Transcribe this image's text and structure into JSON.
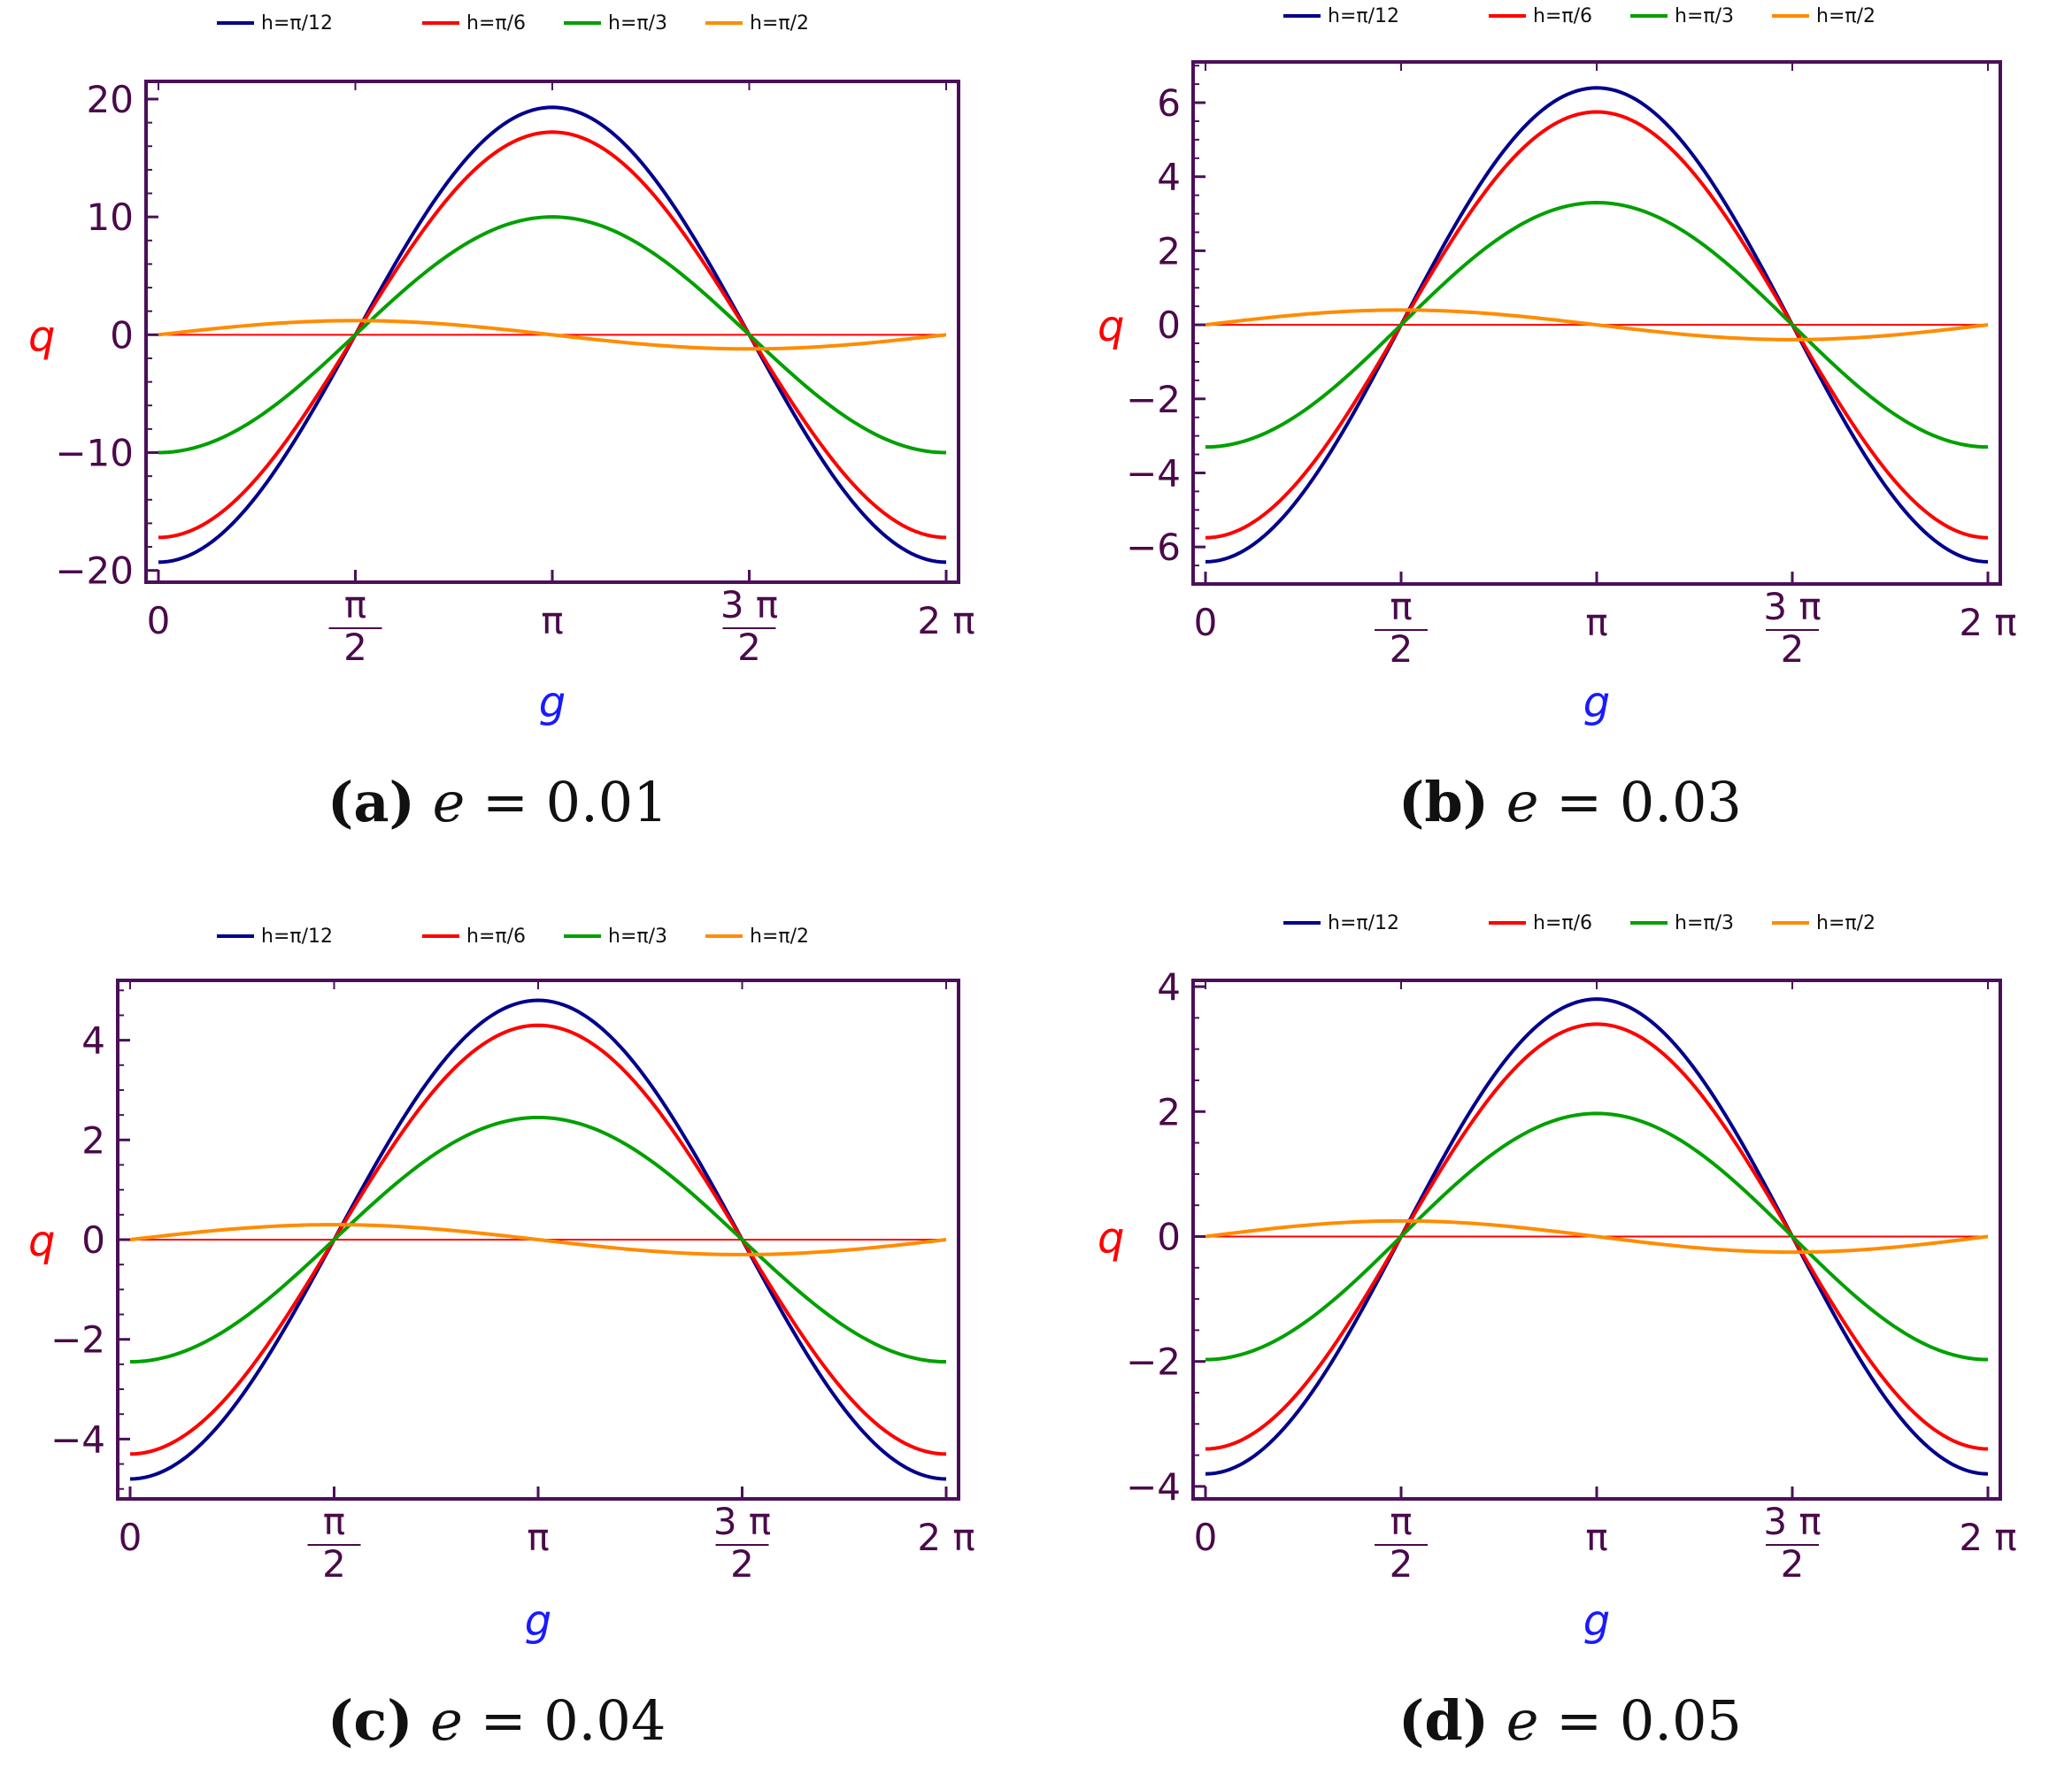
{
  "colors": {
    "frame": "#4b0f5a",
    "tick_text": "#4a0a4a",
    "ylabel": "#ff0000",
    "xlabel": "#1a1aff",
    "zero_line": "#ff0000",
    "series": [
      "#00008b",
      "#ff0000",
      "#00a000",
      "#ff8c00"
    ]
  },
  "chart_data": [
    {
      "type": "line",
      "caption": {
        "tag": "(a)",
        "var": "e",
        "eq": "= 0.01"
      },
      "xlabel": "g",
      "ylabel": "q",
      "xlim": [
        0,
        6.2832
      ],
      "ylim": [
        -21,
        21.5
      ],
      "yticks": [
        -20,
        -10,
        0,
        10,
        20
      ],
      "ytick_labels": [
        "−20",
        "−10",
        "0",
        "10",
        "20"
      ],
      "ytick_minor_step": 2,
      "xticks": [
        0,
        1.5708,
        3.1416,
        4.7124,
        6.2832
      ],
      "xtick_labels": [
        [
          "0"
        ],
        [
          "π",
          "2"
        ],
        [
          "π"
        ],
        [
          "3 π",
          "2"
        ],
        [
          "2 π"
        ]
      ],
      "legend_position": "top",
      "series": [
        {
          "name": "h=π/12",
          "amplitude": 19.3
        },
        {
          "name": "h=π/6",
          "amplitude": 17.2
        },
        {
          "name": "h=π/3",
          "amplitude": 10.0
        },
        {
          "name": "h=π/2",
          "amplitude": 1.2
        }
      ]
    },
    {
      "type": "line",
      "caption": {
        "tag": "(b)",
        "var": "e",
        "eq": "= 0.03"
      },
      "xlabel": "g",
      "ylabel": "q",
      "xlim": [
        0,
        6.2832
      ],
      "ylim": [
        -7,
        7.1
      ],
      "yticks": [
        -6,
        -4,
        -2,
        0,
        2,
        4,
        6
      ],
      "ytick_labels": [
        "−6",
        "−4",
        "−2",
        "0",
        "2",
        "4",
        "6"
      ],
      "ytick_minor_step": 0.5,
      "xticks": [
        0,
        1.5708,
        3.1416,
        4.7124,
        6.2832
      ],
      "xtick_labels": [
        [
          "0"
        ],
        [
          "π",
          "2"
        ],
        [
          "π"
        ],
        [
          "3 π",
          "2"
        ],
        [
          "2 π"
        ]
      ],
      "legend_position": "top",
      "series": [
        {
          "name": "h=π/12",
          "amplitude": 6.4
        },
        {
          "name": "h=π/6",
          "amplitude": 5.75
        },
        {
          "name": "h=π/3",
          "amplitude": 3.3
        },
        {
          "name": "h=π/2",
          "amplitude": 0.4
        }
      ]
    },
    {
      "type": "line",
      "caption": {
        "tag": "(c)",
        "var": "e",
        "eq": "= 0.04"
      },
      "xlabel": "g",
      "ylabel": "q",
      "xlim": [
        0,
        6.2832
      ],
      "ylim": [
        -5.2,
        5.2
      ],
      "yticks": [
        -4,
        -2,
        0,
        2,
        4
      ],
      "ytick_labels": [
        "−4",
        "−2",
        "0",
        "2",
        "4"
      ],
      "ytick_minor_step": 0.5,
      "xticks": [
        0,
        1.5708,
        3.1416,
        4.7124,
        6.2832
      ],
      "xtick_labels": [
        [
          "0"
        ],
        [
          "π",
          "2"
        ],
        [
          "π"
        ],
        [
          "3 π",
          "2"
        ],
        [
          "2 π"
        ]
      ],
      "legend_position": "top",
      "series": [
        {
          "name": "h=π/12",
          "amplitude": 4.8
        },
        {
          "name": "h=π/6",
          "amplitude": 4.3
        },
        {
          "name": "h=π/3",
          "amplitude": 2.45
        },
        {
          "name": "h=π/2",
          "amplitude": 0.3
        }
      ]
    },
    {
      "type": "line",
      "caption": {
        "tag": "(d)",
        "var": "e",
        "eq": "= 0.05"
      },
      "xlabel": "g",
      "ylabel": "q",
      "xlim": [
        0,
        6.2832
      ],
      "ylim": [
        -4.2,
        4.1
      ],
      "yticks": [
        -4,
        -2,
        0,
        2,
        4
      ],
      "ytick_labels": [
        "−4",
        "−2",
        "0",
        "2",
        "4"
      ],
      "ytick_minor_step": 0.5,
      "xticks": [
        0,
        1.5708,
        3.1416,
        4.7124,
        6.2832
      ],
      "xtick_labels": [
        [
          "0"
        ],
        [
          "π",
          "2"
        ],
        [
          "π"
        ],
        [
          "3 π",
          "2"
        ],
        [
          "2 π"
        ]
      ],
      "legend_position": "top",
      "series": [
        {
          "name": "h=π/12",
          "amplitude": 3.8
        },
        {
          "name": "h=π/6",
          "amplitude": 3.4
        },
        {
          "name": "h=π/3",
          "amplitude": 1.97
        },
        {
          "name": "h=π/2",
          "amplitude": 0.25
        }
      ]
    }
  ]
}
